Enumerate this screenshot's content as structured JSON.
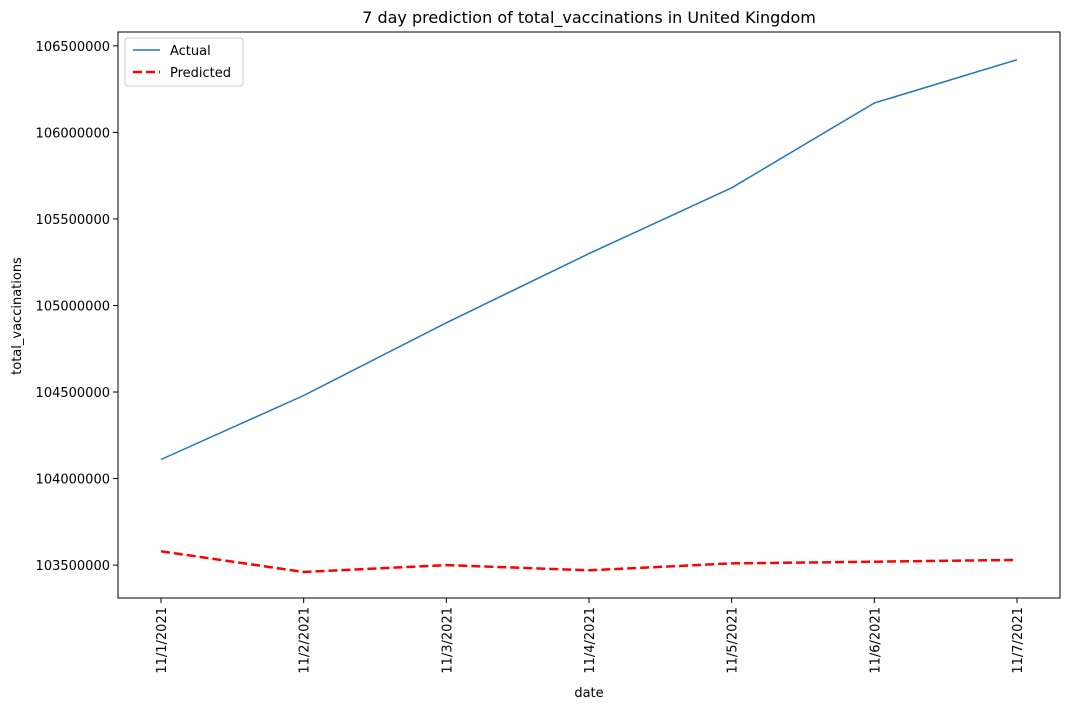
{
  "chart_data": {
    "type": "line",
    "title": "7 day prediction of total_vaccinations in United Kingdom",
    "xlabel": "date",
    "ylabel": "total_vaccinations",
    "categories": [
      "11/1/2021",
      "11/2/2021",
      "11/3/2021",
      "11/4/2021",
      "11/5/2021",
      "11/6/2021",
      "11/7/2021"
    ],
    "yticks": [
      103500000,
      104000000,
      104500000,
      105000000,
      105500000,
      106000000,
      106500000
    ],
    "ylim": [
      103310000,
      106580000
    ],
    "series": [
      {
        "name": "Actual",
        "color": "#1f77b4",
        "style": "solid",
        "values": [
          104110000,
          104480000,
          104900000,
          105300000,
          105680000,
          106170000,
          106420000
        ]
      },
      {
        "name": "Predicted",
        "color": "#ff0000",
        "style": "dashed",
        "values": [
          103580000,
          103460000,
          103500000,
          103470000,
          103510000,
          103520000,
          103530000
        ]
      }
    ],
    "legend": "top-left",
    "grid": false
  }
}
